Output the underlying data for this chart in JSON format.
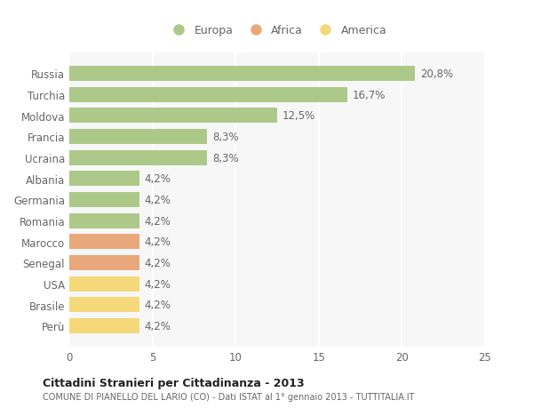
{
  "countries": [
    "Russia",
    "Turchia",
    "Moldova",
    "Francia",
    "Ucraina",
    "Albania",
    "Germania",
    "Romania",
    "Marocco",
    "Senegal",
    "USA",
    "Brasile",
    "Perù"
  ],
  "values": [
    20.8,
    16.7,
    12.5,
    8.3,
    8.3,
    4.2,
    4.2,
    4.2,
    4.2,
    4.2,
    4.2,
    4.2,
    4.2
  ],
  "labels": [
    "20,8%",
    "16,7%",
    "12,5%",
    "8,3%",
    "8,3%",
    "4,2%",
    "4,2%",
    "4,2%",
    "4,2%",
    "4,2%",
    "4,2%",
    "4,2%",
    "4,2%"
  ],
  "continent": [
    "Europa",
    "Europa",
    "Europa",
    "Europa",
    "Europa",
    "Europa",
    "Europa",
    "Europa",
    "Africa",
    "Africa",
    "America",
    "America",
    "America"
  ],
  "colors": {
    "Europa": "#adc98a",
    "Africa": "#e8a87c",
    "America": "#f5d87a"
  },
  "legend_labels": [
    "Europa",
    "Africa",
    "America"
  ],
  "title": "Cittadini Stranieri per Cittadinanza - 2013",
  "subtitle": "COMUNE DI PIANELLO DEL LARIO (CO) - Dati ISTAT al 1° gennaio 2013 - TUTTITALIA.IT",
  "xlim": [
    0,
    25
  ],
  "xticks": [
    0,
    5,
    10,
    15,
    20,
    25
  ],
  "background_color": "#ffffff",
  "plot_bg_color": "#f7f7f7",
  "grid_color": "#ffffff"
}
